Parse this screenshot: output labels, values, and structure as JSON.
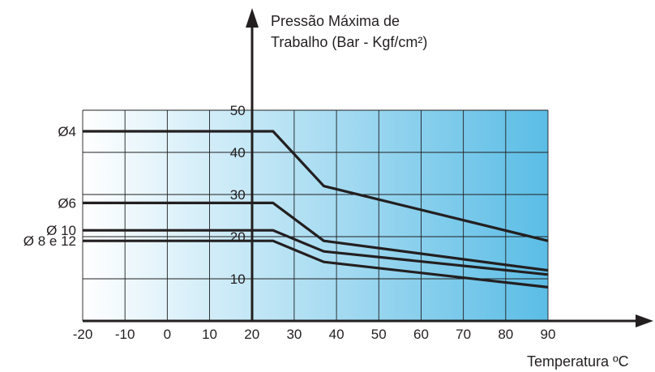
{
  "chart_data": {
    "type": "line",
    "y_title_lines": [
      "Pressão Máxima de",
      "Trabalho (Bar - Kgf/cm²)"
    ],
    "xlabel": "Temperatura ºC",
    "x_ticks": [
      -20,
      -10,
      0,
      10,
      20,
      30,
      40,
      50,
      60,
      70,
      80,
      90
    ],
    "y_ticks": [
      10,
      20,
      30,
      40,
      50
    ],
    "xlim": [
      -20,
      90
    ],
    "ylim": [
      0,
      50
    ],
    "grid": true,
    "background_gradient": [
      "#ffffff",
      "#5bbde6"
    ],
    "series": [
      {
        "name": "Ø4",
        "x": [
          -20,
          25,
          37,
          90
        ],
        "y": [
          45,
          45,
          32,
          19
        ]
      },
      {
        "name": "Ø6",
        "x": [
          -20,
          25,
          37,
          90
        ],
        "y": [
          28,
          28,
          19,
          12
        ]
      },
      {
        "name": "Ø 10",
        "x": [
          -20,
          25,
          37,
          90
        ],
        "y": [
          21.5,
          21.5,
          16.5,
          11
        ]
      },
      {
        "name": "Ø 8 e 12",
        "x": [
          -20,
          25,
          37,
          90
        ],
        "y": [
          19,
          19,
          14,
          8
        ]
      }
    ]
  }
}
